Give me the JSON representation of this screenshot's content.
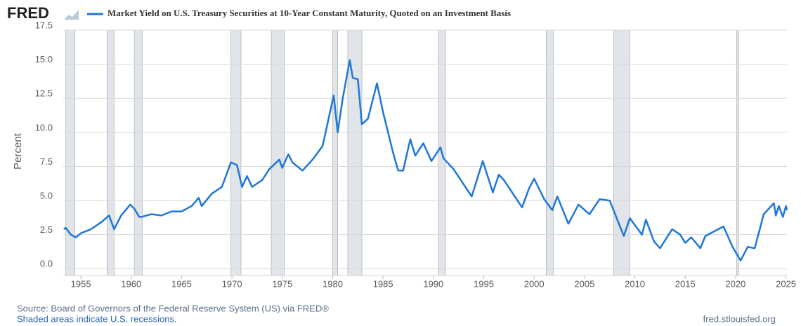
{
  "chart_data": {
    "type": "line",
    "logo": "FRED",
    "title": "Market Yield on U.S. Treasury Securities at 10-Year Constant Maturity, Quoted on an Investment Basis",
    "y_label": "Percent",
    "source": "Source: Board of Governors of the Federal Reserve System (US) via FRED®",
    "note": "Shaded areas indicate U.S. recessions.",
    "site": "fred.stlouisfed.org",
    "x": [
      1953.3,
      1953.5,
      1954.0,
      1954.5,
      1955,
      1956,
      1957,
      1957.8,
      1958.3,
      1959,
      1959.9,
      1960.3,
      1960.8,
      1961,
      1962,
      1963,
      1964,
      1965,
      1966,
      1966.7,
      1967,
      1968,
      1969,
      1969.9,
      1970.5,
      1971,
      1971.5,
      1972,
      1973,
      1973.7,
      1974.7,
      1975,
      1975.6,
      1976,
      1977,
      1978,
      1979,
      1980.1,
      1980.5,
      1981.0,
      1981.7,
      1982.0,
      1982.5,
      1982.9,
      1983.5,
      1984.4,
      1985,
      1986,
      1986.5,
      1987.0,
      1987.7,
      1988.2,
      1989,
      1989.8,
      1990.7,
      1991,
      1992,
      1993.8,
      1994.9,
      1995.9,
      1996.5,
      1997,
      1998.8,
      1999.5,
      2000.0,
      2001,
      2001.8,
      2002.3,
      2003.4,
      2004.4,
      2005.5,
      2006.5,
      2007.5,
      2008.9,
      2009.5,
      2010.7,
      2011.1,
      2011.9,
      2012.5,
      2013.7,
      2014.5,
      2015.0,
      2015.6,
      2016.5,
      2017,
      2018.8,
      2019.7,
      2020.5,
      2021.2,
      2021.9,
      2022.8,
      2023.8,
      2024.0,
      2024.3,
      2024.7,
      2025.0,
      2025.1
    ],
    "series": [
      {
        "name": "Market Yield on U.S. Treasury Securities at 10-Year Constant Maturity, Quoted on an Investment Basis",
        "color": "#1f77d8",
        "values": [
          2.9,
          3.0,
          2.5,
          2.3,
          2.6,
          2.9,
          3.4,
          3.9,
          2.9,
          3.9,
          4.7,
          4.4,
          3.8,
          3.8,
          4.0,
          3.9,
          4.2,
          4.2,
          4.6,
          5.2,
          4.6,
          5.5,
          6.0,
          7.8,
          7.6,
          6.0,
          6.8,
          6.0,
          6.5,
          7.3,
          8.0,
          7.4,
          8.4,
          7.8,
          7.2,
          8.0,
          9.0,
          12.7,
          10.0,
          12.5,
          15.3,
          14.0,
          13.9,
          10.6,
          11.0,
          13.6,
          11.5,
          8.5,
          7.2,
          7.2,
          9.5,
          8.3,
          9.2,
          7.9,
          8.9,
          8.1,
          7.3,
          5.3,
          7.9,
          5.6,
          6.9,
          6.5,
          4.5,
          5.9,
          6.6,
          5.1,
          4.3,
          5.3,
          3.3,
          4.7,
          4.0,
          5.1,
          5.0,
          2.4,
          3.7,
          2.5,
          3.6,
          2.0,
          1.5,
          2.9,
          2.5,
          1.9,
          2.3,
          1.5,
          2.4,
          3.1,
          1.6,
          0.6,
          1.6,
          1.5,
          4.0,
          4.8,
          3.9,
          4.6,
          3.8,
          4.6,
          4.3
        ]
      }
    ],
    "recessions": [
      [
        1953.5,
        1954.4
      ],
      [
        1957.6,
        1958.3
      ],
      [
        1960.3,
        1961.1
      ],
      [
        1969.9,
        1970.9
      ],
      [
        1973.9,
        1975.2
      ],
      [
        1980.0,
        1980.5
      ],
      [
        1981.5,
        1982.9
      ],
      [
        1990.5,
        1991.2
      ],
      [
        2001.2,
        2001.9
      ],
      [
        2007.9,
        2009.5
      ],
      [
        2020.1,
        2020.3
      ]
    ],
    "recession_color": "#e1e4e8",
    "xlim": [
      1953.25,
      2025.1
    ],
    "xticks": [
      1955,
      1960,
      1965,
      1970,
      1975,
      1980,
      1985,
      1990,
      1995,
      2000,
      2005,
      2010,
      2015,
      2020,
      2025
    ],
    "ylim": [
      -0.5,
      17.5
    ],
    "yticks": [
      {
        "value": 0,
        "label": "0.0"
      },
      2.5,
      {
        "value": 5,
        "label": "5.0"
      },
      7.5,
      {
        "value": 10,
        "label": "10.0"
      },
      12.5,
      {
        "value": 15,
        "label": "15.0"
      },
      17.5
    ],
    "grid": true
  }
}
